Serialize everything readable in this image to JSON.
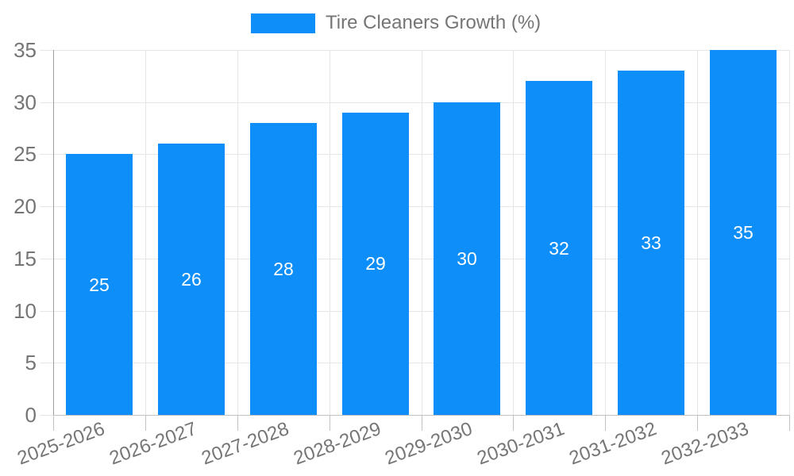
{
  "legend": {
    "label": "Tire Cleaners Growth (%)"
  },
  "chart_data": {
    "type": "bar",
    "title": "Tire Cleaners Growth (%)",
    "categories": [
      "2025-2026",
      "2026-2027",
      "2027-2028",
      "2028-2029",
      "2029-2030",
      "2030-2031",
      "2031-2032",
      "2032-2033"
    ],
    "values": [
      25,
      26,
      28,
      29,
      30,
      32,
      33,
      35
    ],
    "series": [
      {
        "name": "Tire Cleaners Growth (%)",
        "values": [
          25,
          26,
          28,
          29,
          30,
          32,
          33,
          35
        ]
      }
    ],
    "xlabel": "",
    "ylabel": "",
    "ylim": [
      0,
      35
    ],
    "yticks": [
      0,
      5,
      10,
      15,
      20,
      25,
      30,
      35
    ],
    "grid": true,
    "legend_position": "top",
    "value_label_position": "inside-middle",
    "x_tick_label_rotation_deg": -20
  },
  "colors": {
    "bar": "#0d8ef8",
    "axis_text": "#757575",
    "value_label_text": "#ffffff",
    "gridline": "#e6e6e6",
    "axis_line": "#9e9e9e",
    "tick": "#c2c2c2",
    "background": "#ffffff"
  }
}
